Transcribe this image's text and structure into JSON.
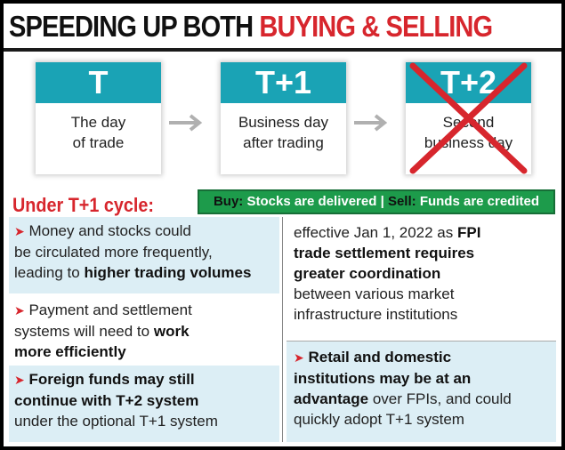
{
  "headline": {
    "part1": "SPEEDING UP BOTH",
    "part2": "BUYING & SELLING"
  },
  "timeline": [
    {
      "label": "T",
      "line1": "The day",
      "line2": "of trade"
    },
    {
      "label": "T+1",
      "line1": "Business day",
      "line2": "after trading"
    },
    {
      "label": "T+2",
      "line1": "Second",
      "line2": "business day"
    }
  ],
  "colors": {
    "teal": "#1aa3b5",
    "red": "#d7262d",
    "green": "#1d9b4b",
    "lightblue": "#dceef5"
  },
  "icons": {
    "arrow": "arrow-right-icon",
    "cross": "cross-out-icon",
    "bullet": "triangle-bullet-icon"
  },
  "cycle_heading": "Under T+1 cycle:",
  "settlement": {
    "buy_key": "Buy:",
    "buy_text": "Stocks are delivered",
    "sep": "|",
    "sell_key": "Sell:",
    "sell_text": "Funds are credited"
  },
  "points": {
    "p1": {
      "a": "Money and stocks could",
      "b": "be circulated more frequently,",
      "c": "leading to ",
      "d": "higher trading volumes"
    },
    "p2": {
      "a": "Payment and settlement",
      "b": "systems will need to ",
      "c": "work",
      "d": "more efficiently"
    },
    "p3": {
      "a": "Foreign funds may still",
      "b": "continue with T+2 system",
      "c": "under the optional T+1 system"
    },
    "p4": {
      "a": "effective Jan 1, 2022 as ",
      "b": "FPI",
      "c": "trade settlement requires",
      "d": "greater coordination",
      "e": "between various market",
      "f": "infrastructure institutions"
    },
    "p5": {
      "a": "Retail and domestic",
      "b": "institutions may be at an",
      "c": "advantage",
      "d": " over FPIs, and could",
      "e": "quickly adopt T+1 system"
    }
  }
}
